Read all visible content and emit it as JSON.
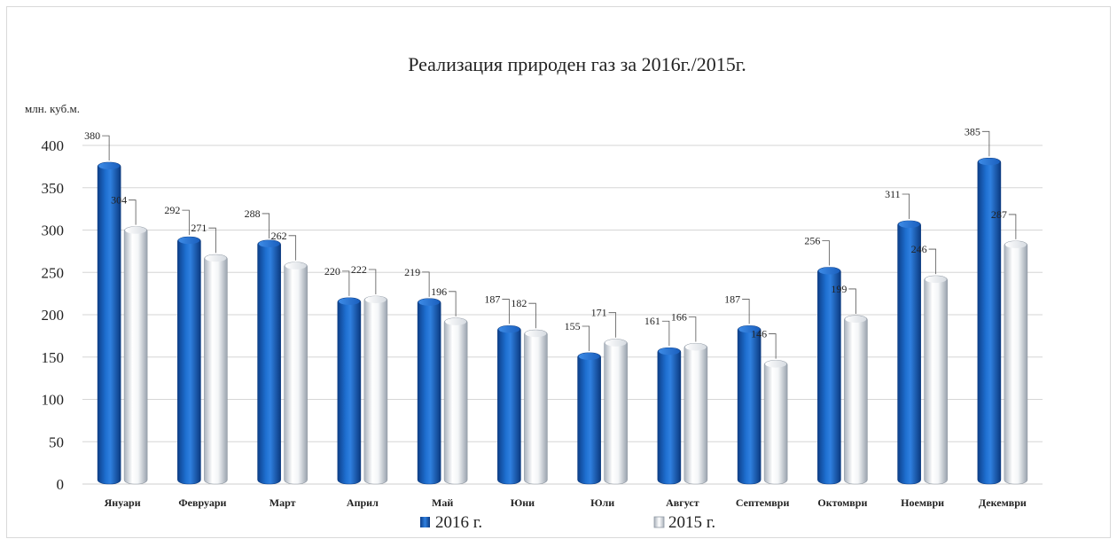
{
  "chart_data": {
    "type": "bar",
    "title": "Реализация  природен газ за 2016г./2015г.",
    "ylabel": "млн. куб.м.",
    "xlabel": "",
    "ylim": [
      0,
      400
    ],
    "yticks": [
      0,
      50,
      100,
      150,
      200,
      250,
      300,
      350,
      400
    ],
    "grid": true,
    "legend_position": "bottom",
    "categories": [
      "Януари",
      "Февруари",
      "Март",
      "Април",
      "Май",
      "Юни",
      "Юли",
      "Август",
      "Септември",
      "Октомври",
      "Ноември",
      "Декември"
    ],
    "series": [
      {
        "name": "2016 г.",
        "color": "#1565c0",
        "values": [
          380,
          292,
          288,
          220,
          219,
          187,
          155,
          161,
          187,
          256,
          311,
          385
        ]
      },
      {
        "name": "2015 г.",
        "color": "#e8ebef",
        "values": [
          304,
          271,
          262,
          222,
          196,
          182,
          171,
          166,
          146,
          199,
          246,
          287
        ]
      }
    ]
  }
}
